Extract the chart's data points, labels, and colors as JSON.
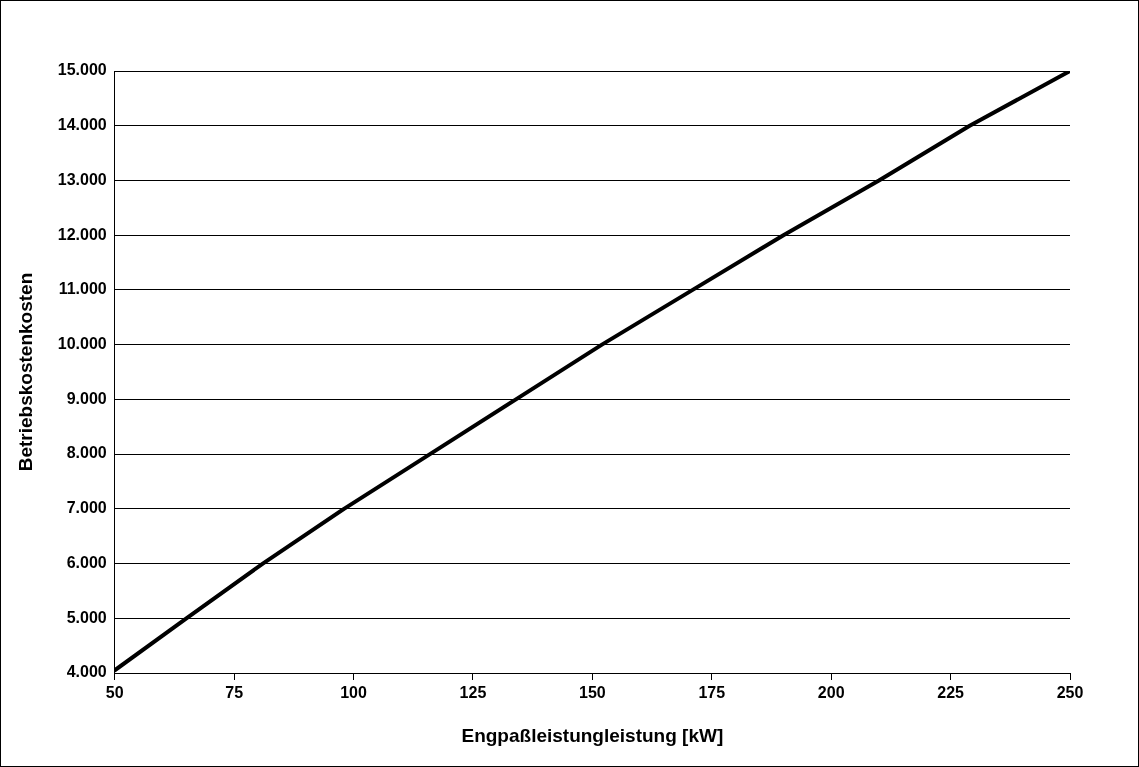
{
  "chart_data": {
    "type": "line",
    "xlabel": "Engpaßleistungleistung [kW]",
    "ylabel": "Betriebskostenkosten",
    "x": [
      50,
      65,
      81,
      98,
      116,
      134,
      152,
      171,
      190,
      210,
      229,
      250
    ],
    "series": [
      {
        "color": "#000000",
        "values": [
          4050,
          5000,
          6000,
          7000,
          8000,
          9000,
          10000,
          11000,
          12000,
          13000,
          14000,
          15000
        ]
      }
    ],
    "xlim": [
      50,
      250
    ],
    "xticks": [
      50,
      75,
      100,
      125,
      150,
      175,
      200,
      225,
      250
    ],
    "ylim": [
      4000,
      15000
    ],
    "yticks": [
      {
        "value": 4000,
        "label": "4.000"
      },
      {
        "value": 5000,
        "label": "5.000"
      },
      {
        "value": 6000,
        "label": "6.000"
      },
      {
        "value": 7000,
        "label": "7.000"
      },
      {
        "value": 8000,
        "label": "8.000"
      },
      {
        "value": 9000,
        "label": "9.000"
      },
      {
        "value": 10000,
        "label": "10.000"
      },
      {
        "value": 11000,
        "label": "11.000"
      },
      {
        "value": 12000,
        "label": "12.000"
      },
      {
        "value": 13000,
        "label": "13.000"
      },
      {
        "value": 14000,
        "label": "14.000"
      },
      {
        "value": 15000,
        "label": "15.000"
      }
    ],
    "grid": "y",
    "legend": false,
    "marker": "none",
    "line_style": "solid"
  }
}
